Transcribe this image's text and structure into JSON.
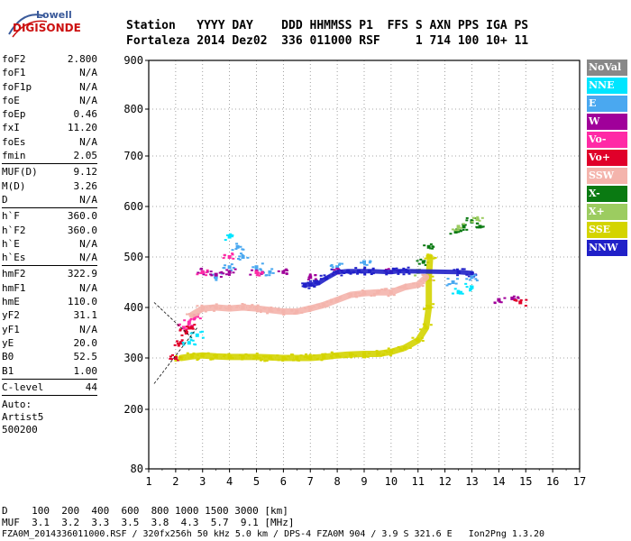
{
  "logo": {
    "brand": "Lowell",
    "name": "DIGISONDE"
  },
  "header": {
    "row1": "Station   YYYY DAY    DDD HHMMSS P1  FFS S AXN PPS IGA PS",
    "row2": "Fortaleza 2014 Dez02  336 011000 RSF     1 714 100 10+ 11"
  },
  "params": {
    "group1": [
      {
        "label": "foF2",
        "value": "2.800"
      },
      {
        "label": "foF1",
        "value": "N/A"
      },
      {
        "label": "foF1p",
        "value": "N/A"
      },
      {
        "label": "foE",
        "value": "N/A"
      },
      {
        "label": "foEp",
        "value": "0.46"
      },
      {
        "label": "fxI",
        "value": "11.20"
      },
      {
        "label": "foEs",
        "value": "N/A"
      },
      {
        "label": "fmin",
        "value": "2.05"
      }
    ],
    "group2": [
      {
        "label": "MUF(D)",
        "value": "9.12"
      },
      {
        "label": "M(D)",
        "value": "3.26"
      },
      {
        "label": "D",
        "value": "N/A"
      }
    ],
    "group3": [
      {
        "label": "h`F",
        "value": "360.0"
      },
      {
        "label": "h`F2",
        "value": "360.0"
      },
      {
        "label": "h`E",
        "value": "N/A"
      },
      {
        "label": "h`Es",
        "value": "N/A"
      }
    ],
    "group4": [
      {
        "label": "hmF2",
        "value": "322.9"
      },
      {
        "label": "hmF1",
        "value": "N/A"
      },
      {
        "label": "hmE",
        "value": "110.0"
      },
      {
        "label": "yF2",
        "value": "31.1"
      },
      {
        "label": "yF1",
        "value": "N/A"
      },
      {
        "label": "yE",
        "value": "20.0"
      },
      {
        "label": "B0",
        "value": "52.5"
      },
      {
        "label": "B1",
        "value": "1.00"
      }
    ],
    "group5": [
      {
        "label": "C-level",
        "value": "44"
      }
    ],
    "auto": [
      "Auto:",
      "Artist5",
      "500200"
    ]
  },
  "legend": [
    {
      "label": "NoVal",
      "color": "#888888"
    },
    {
      "label": "NNE",
      "color": "#00e5ff"
    },
    {
      "label": "E",
      "color": "#4aa8f0"
    },
    {
      "label": "W",
      "color": "#a0009a"
    },
    {
      "label": "Vo-",
      "color": "#ff2aa6"
    },
    {
      "label": "Vo+",
      "color": "#e0002a"
    },
    {
      "label": "SSW",
      "color": "#f4b4ac"
    },
    {
      "label": "X-",
      "color": "#0a7a12"
    },
    {
      "label": "X+",
      "color": "#9ccc60"
    },
    {
      "label": "SSE",
      "color": "#d4d400"
    },
    {
      "label": "NNW",
      "color": "#2020c8"
    }
  ],
  "footer": {
    "line1": "D    100  200  400  600  800 1000 1500 3000 [km]",
    "line2": "MUF  3.1  3.2  3.3  3.5  3.8  4.3  5.7  9.1 [MHz]",
    "line3": "FZA0M_2014336011000.RSF / 320fx256h 50 kHz 5.0 km / DPS-4 FZA0M 904 / 3.9 S 321.6 E   Ion2Png 1.3.20"
  },
  "chart_data": {
    "type": "scatter",
    "xlim": [
      1,
      17
    ],
    "ylim": [
      80,
      900
    ],
    "x_ticks": [
      1,
      2,
      3,
      4,
      5,
      6,
      7,
      8,
      9,
      10,
      11,
      12,
      13,
      14,
      15,
      16,
      17
    ],
    "y_ticks": [
      80,
      200,
      300,
      400,
      500,
      600,
      700,
      800,
      900
    ],
    "series": [
      {
        "name": "SSE",
        "color": "#d4d400",
        "points": [
          [
            2.2,
            300
          ],
          [
            2.6,
            303
          ],
          [
            3.0,
            305
          ],
          [
            3.5,
            303
          ],
          [
            4.0,
            302
          ],
          [
            4.5,
            302
          ],
          [
            5.0,
            302
          ],
          [
            5.5,
            301
          ],
          [
            6.0,
            300
          ],
          [
            6.5,
            300
          ],
          [
            7.0,
            300
          ],
          [
            7.5,
            302
          ],
          [
            8.0,
            305
          ],
          [
            8.5,
            307
          ],
          [
            9.0,
            308
          ],
          [
            9.5,
            308
          ],
          [
            10.0,
            312
          ],
          [
            10.5,
            320
          ],
          [
            11.0,
            335
          ],
          [
            11.3,
            360
          ],
          [
            11.4,
            400
          ],
          [
            11.4,
            460
          ],
          [
            11.45,
            500
          ]
        ]
      },
      {
        "name": "SSW",
        "color": "#f4b4ac",
        "points": [
          [
            2.6,
            385
          ],
          [
            3.0,
            398
          ],
          [
            3.5,
            400
          ],
          [
            4.0,
            398
          ],
          [
            4.5,
            400
          ],
          [
            5.0,
            398
          ],
          [
            5.5,
            395
          ],
          [
            6.0,
            392
          ],
          [
            6.5,
            392
          ],
          [
            7.0,
            398
          ],
          [
            7.5,
            405
          ],
          [
            8.0,
            415
          ],
          [
            8.5,
            425
          ],
          [
            9.0,
            428
          ],
          [
            9.5,
            430
          ],
          [
            10.0,
            430
          ],
          [
            10.5,
            440
          ],
          [
            11.0,
            445
          ],
          [
            11.3,
            460
          ]
        ]
      },
      {
        "name": "NNW",
        "color": "#2020c8",
        "points": [
          [
            6.8,
            445
          ],
          [
            7.0,
            445
          ],
          [
            7.3,
            448
          ],
          [
            7.6,
            458
          ],
          [
            8.0,
            470
          ],
          [
            8.4,
            472
          ],
          [
            8.8,
            472
          ],
          [
            9.2,
            472
          ],
          [
            10.0,
            470
          ],
          [
            10.3,
            472
          ],
          [
            10.6,
            472
          ],
          [
            12.5,
            470
          ],
          [
            13.0,
            468
          ]
        ]
      },
      {
        "name": "X-",
        "color": "#0a7a12",
        "points": [
          [
            11.2,
            490
          ],
          [
            11.4,
            520
          ],
          [
            12.4,
            550
          ],
          [
            12.7,
            560
          ],
          [
            13.0,
            570
          ],
          [
            13.3,
            560
          ]
        ]
      },
      {
        "name": "X+",
        "color": "#9ccc60",
        "points": [
          [
            11.0,
            470
          ],
          [
            12.5,
            560
          ],
          [
            13.2,
            575
          ]
        ]
      },
      {
        "name": "E",
        "color": "#4aa8f0",
        "points": [
          [
            3.5,
            460
          ],
          [
            4.0,
            480
          ],
          [
            4.3,
            520
          ],
          [
            4.5,
            500
          ],
          [
            5.0,
            480
          ],
          [
            5.5,
            470
          ],
          [
            8.0,
            480
          ],
          [
            9.0,
            490
          ],
          [
            12.3,
            450
          ],
          [
            13.0,
            460
          ]
        ]
      },
      {
        "name": "W",
        "color": "#a0009a",
        "points": [
          [
            3.0,
            470
          ],
          [
            3.5,
            465
          ],
          [
            4.0,
            470
          ],
          [
            5.0,
            470
          ],
          [
            6.0,
            470
          ],
          [
            7.0,
            460
          ],
          [
            8.0,
            470
          ],
          [
            10.0,
            470
          ],
          [
            14.0,
            415
          ],
          [
            14.5,
            418
          ]
        ]
      },
      {
        "name": "Vo-",
        "color": "#ff2aa6",
        "points": [
          [
            2.3,
            360
          ],
          [
            2.5,
            370
          ],
          [
            2.7,
            380
          ],
          [
            3.0,
            470
          ],
          [
            4.0,
            500
          ],
          [
            5.0,
            470
          ]
        ]
      },
      {
        "name": "Vo+",
        "color": "#e0002a",
        "points": [
          [
            2.0,
            300
          ],
          [
            2.2,
            330
          ],
          [
            2.4,
            350
          ],
          [
            2.6,
            360
          ],
          [
            14.8,
            410
          ]
        ]
      },
      {
        "name": "NNE",
        "color": "#00e5ff",
        "points": [
          [
            2.5,
            330
          ],
          [
            2.8,
            345
          ],
          [
            4.0,
            540
          ],
          [
            12.5,
            430
          ],
          [
            13.0,
            440
          ]
        ]
      }
    ]
  }
}
